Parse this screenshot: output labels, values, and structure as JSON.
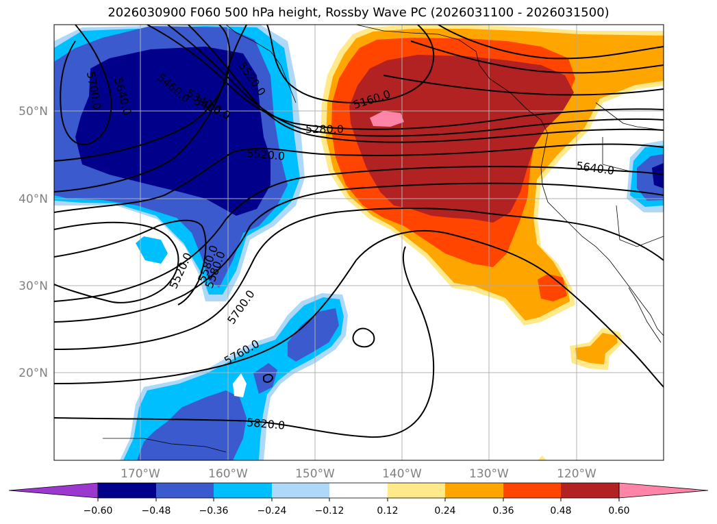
{
  "title": "2026030900 F060 500 hPa height, Rossby Wave PC (2026031100 - 2026031500)",
  "map": {
    "lat_ticks": [
      "50°N",
      "40°N",
      "30°N",
      "20°N"
    ],
    "lon_ticks": [
      "170°W",
      "160°W",
      "150°W",
      "140°W",
      "130°W",
      "120°W"
    ],
    "tick_color": "#808080",
    "contour_labels": [
      "5700.0",
      "5640.0",
      "5580.0",
      "5460.0",
      "5520.0",
      "5340.0",
      "5400.0",
      "5160.0",
      "5280.0",
      "5520.0",
      "5640.0",
      "5520.0",
      "5580.0",
      "5700.0",
      "5760.0",
      "5820.0"
    ]
  },
  "colorbar": {
    "colors": [
      "#9b38d0",
      "#00008b",
      "#3a5acd",
      "#00bfff",
      "#add8f8",
      "#ffffff",
      "#ffe98a",
      "#ffa500",
      "#ff4500",
      "#b22222",
      "#ff85a8"
    ],
    "labels": [
      "−0.60",
      "−0.48",
      "−0.36",
      "−0.24",
      "−0.12",
      "0.12",
      "0.24",
      "0.36",
      "0.48",
      "0.60"
    ]
  }
}
